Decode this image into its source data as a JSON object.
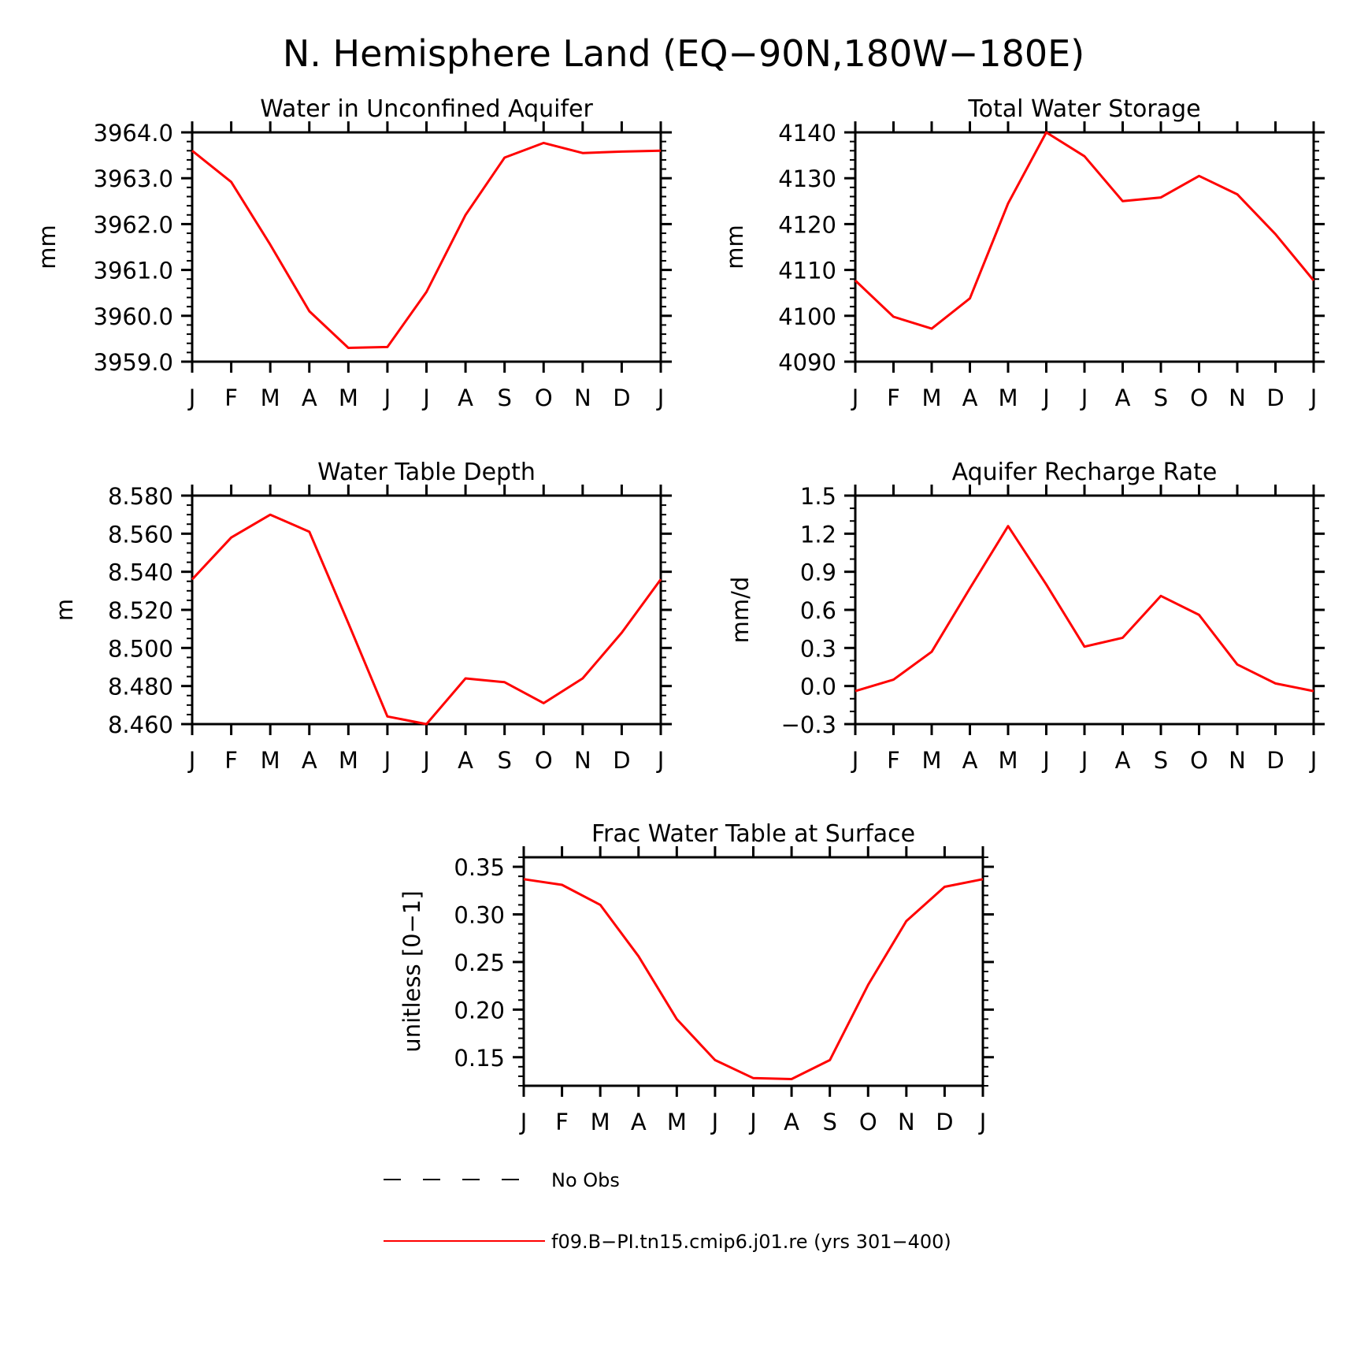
{
  "figure_title": "N. Hemisphere Land (EQ−90N,180W−180E)",
  "colors": {
    "model_line": "#ff0000",
    "obs_line": "#000000",
    "axis": "#000000"
  },
  "legend": {
    "obs_label": "No Obs",
    "model_label": "f09.B−PI.tn15.cmip6.j01.re (yrs 301−400)"
  },
  "chart_data": [
    {
      "type": "line",
      "title": "Water in Unconfined Aquifer",
      "xlabel": "",
      "ylabel": "mm",
      "categories": [
        "J",
        "F",
        "M",
        "A",
        "M",
        "J",
        "J",
        "A",
        "S",
        "O",
        "N",
        "D",
        "J"
      ],
      "ylim": [
        3959.0,
        3964.0
      ],
      "yticks": [
        3959.0,
        3960.0,
        3961.0,
        3962.0,
        3963.0,
        3964.0
      ],
      "ytick_labels": [
        "3959.0",
        "3960.0",
        "3961.0",
        "3962.0",
        "3963.0",
        "3964.0"
      ],
      "minor_per_major": 5,
      "series": [
        {
          "values": [
            3963.6,
            3962.92,
            3961.55,
            3960.1,
            3959.3,
            3959.32,
            3960.52,
            3962.2,
            3963.45,
            3963.77,
            3963.55,
            3963.58,
            3963.6
          ]
        }
      ]
    },
    {
      "type": "line",
      "title": "Total Water Storage",
      "xlabel": "",
      "ylabel": "mm",
      "categories": [
        "J",
        "F",
        "M",
        "A",
        "M",
        "J",
        "J",
        "A",
        "S",
        "O",
        "N",
        "D",
        "J"
      ],
      "ylim": [
        4090,
        4140
      ],
      "yticks": [
        4090,
        4100,
        4110,
        4120,
        4130,
        4140
      ],
      "ytick_labels": [
        "4090",
        "4100",
        "4110",
        "4120",
        "4130",
        "4140"
      ],
      "minor_per_major": 5,
      "series": [
        {
          "values": [
            4107.7,
            4099.8,
            4097.2,
            4103.8,
            4124.5,
            4140.0,
            4134.8,
            4125.0,
            4125.8,
            4130.5,
            4126.5,
            4117.8,
            4107.7
          ]
        }
      ]
    },
    {
      "type": "line",
      "title": "Water Table Depth",
      "xlabel": "",
      "ylabel": "m",
      "categories": [
        "J",
        "F",
        "M",
        "A",
        "M",
        "J",
        "J",
        "A",
        "S",
        "O",
        "N",
        "D",
        "J"
      ],
      "ylim": [
        8.46,
        8.58
      ],
      "yticks": [
        8.46,
        8.48,
        8.5,
        8.52,
        8.54,
        8.56,
        8.58
      ],
      "ytick_labels": [
        "8.460",
        "8.480",
        "8.500",
        "8.520",
        "8.540",
        "8.560",
        "8.580"
      ],
      "minor_per_major": 4,
      "series": [
        {
          "values": [
            8.536,
            8.558,
            8.57,
            8.561,
            8.513,
            8.464,
            8.46,
            8.484,
            8.482,
            8.471,
            8.484,
            8.508,
            8.536
          ]
        }
      ]
    },
    {
      "type": "line",
      "title": "Aquifer Recharge Rate",
      "xlabel": "",
      "ylabel": "mm/d",
      "categories": [
        "J",
        "F",
        "M",
        "A",
        "M",
        "J",
        "J",
        "A",
        "S",
        "O",
        "N",
        "D",
        "J"
      ],
      "ylim": [
        -0.3,
        1.5
      ],
      "yticks": [
        -0.3,
        0.0,
        0.3,
        0.6,
        0.9,
        1.2,
        1.5
      ],
      "ytick_labels": [
        "−0.3",
        "0.0",
        "0.3",
        "0.6",
        "0.9",
        "1.2",
        "1.5"
      ],
      "minor_per_major": 3,
      "series": [
        {
          "values": [
            -0.04,
            0.05,
            0.27,
            0.77,
            1.26,
            0.8,
            0.31,
            0.38,
            0.71,
            0.56,
            0.17,
            0.02,
            -0.04
          ]
        }
      ]
    },
    {
      "type": "line",
      "title": "Frac Water Table at Surface",
      "xlabel": "",
      "ylabel": "unitless [0−1]",
      "categories": [
        "J",
        "F",
        "M",
        "A",
        "M",
        "J",
        "J",
        "A",
        "S",
        "O",
        "N",
        "D",
        "J"
      ],
      "ylim": [
        0.12,
        0.36
      ],
      "yticks": [
        0.15,
        0.2,
        0.25,
        0.3,
        0.35
      ],
      "ytick_labels": [
        "0.15",
        "0.20",
        "0.25",
        "0.30",
        "0.35"
      ],
      "minor_per_major": 5,
      "series": [
        {
          "values": [
            0.337,
            0.331,
            0.31,
            0.256,
            0.19,
            0.147,
            0.128,
            0.127,
            0.147,
            0.226,
            0.293,
            0.329,
            0.337
          ]
        }
      ]
    }
  ]
}
